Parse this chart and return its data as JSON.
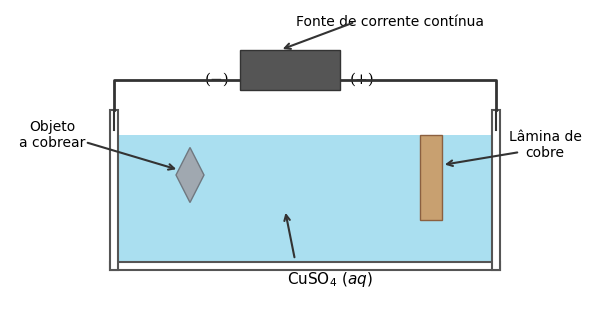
{
  "bg_color": "#ffffff",
  "tank_color": "#aadff0",
  "tank_border": "#555555",
  "battery_color": "#555555",
  "wire_color": "#333333",
  "diamond_color": "#a0a8b0",
  "copper_color": "#c8a070",
  "text_color": "#000000",
  "title": "Fonte de corrente contínua",
  "label_objeto": "Objeto\na cobrear",
  "label_lamina": "Lâmina de\ncobre",
  "label_solution": "CuSO",
  "label_solution_sub": "4",
  "label_solution_italic": " (aq)",
  "label_neg": "(−)",
  "label_pos": "(+)",
  "figsize": [
    6.14,
    3.2
  ],
  "dpi": 100
}
